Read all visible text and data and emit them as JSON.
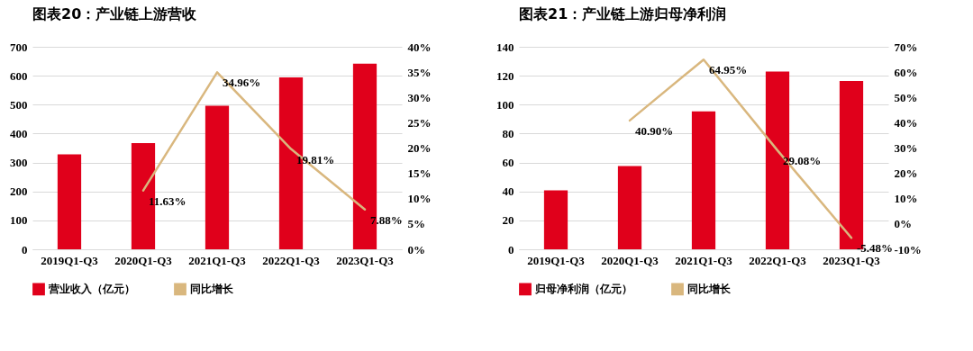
{
  "chart_data": [
    {
      "type": "bar",
      "title": "图表20：产业链上游营收",
      "categories": [
        "2019Q1-Q3",
        "2020Q1-Q3",
        "2021Q1-Q3",
        "2022Q1-Q3",
        "2023Q1-Q3"
      ],
      "series": [
        {
          "name": "营业收入（亿元）",
          "color": "#e0001b",
          "values": [
            328,
            367,
            496,
            594,
            642
          ]
        },
        {
          "name": "同比增长",
          "type": "line",
          "axis": "y2",
          "color": "#d9b77e",
          "values": [
            null,
            11.63,
            34.96,
            19.81,
            7.88
          ],
          "value_labels": [
            null,
            "11.63%",
            "34.96%",
            "19.81%",
            "7.88%"
          ]
        }
      ],
      "ylim": [
        0,
        700
      ],
      "yticks": [
        0,
        100,
        200,
        300,
        400,
        500,
        600,
        700
      ],
      "y2lim": [
        0,
        40
      ],
      "y2ticks": [
        {
          "value": 0,
          "label": "0%"
        },
        {
          "value": 5,
          "label": "5%"
        },
        {
          "value": 10,
          "label": "10%"
        },
        {
          "value": 15,
          "label": "15%"
        },
        {
          "value": 20,
          "label": "20%"
        },
        {
          "value": 25,
          "label": "25%"
        },
        {
          "value": 30,
          "label": "30%"
        },
        {
          "value": 35,
          "label": "35%"
        },
        {
          "value": 40,
          "label": "40%"
        }
      ],
      "grid": "y",
      "legend": "bottom"
    },
    {
      "type": "bar",
      "title": "图表21：产业链上游归母净利润",
      "categories": [
        "2019Q1-Q3",
        "2020Q1-Q3",
        "2021Q1-Q3",
        "2022Q1-Q3",
        "2023Q1-Q3"
      ],
      "series": [
        {
          "name": "归母净利润（亿元）",
          "color": "#e0001b",
          "values": [
            40.7,
            57.6,
            95.3,
            122.9,
            116.4
          ]
        },
        {
          "name": "同比增长",
          "type": "line",
          "axis": "y2",
          "color": "#d9b77e",
          "values": [
            null,
            40.9,
            64.95,
            29.08,
            -5.48
          ],
          "value_labels": [
            null,
            "40.90%",
            "64.95%",
            "29.08%",
            "-5.48%"
          ]
        }
      ],
      "ylim": [
        0,
        140
      ],
      "yticks": [
        0,
        20,
        40,
        60,
        80,
        100,
        120,
        140
      ],
      "y2lim": [
        -10,
        70
      ],
      "y2ticks": [
        {
          "value": -10,
          "label": "-10%"
        },
        {
          "value": 0,
          "label": "0%"
        },
        {
          "value": 10,
          "label": "10%"
        },
        {
          "value": 20,
          "label": "20%"
        },
        {
          "value": 30,
          "label": "30%"
        },
        {
          "value": 40,
          "label": "40%"
        },
        {
          "value": 50,
          "label": "50%"
        },
        {
          "value": 60,
          "label": "60%"
        },
        {
          "value": 70,
          "label": "70%"
        }
      ],
      "grid": "y",
      "legend": "bottom"
    }
  ]
}
